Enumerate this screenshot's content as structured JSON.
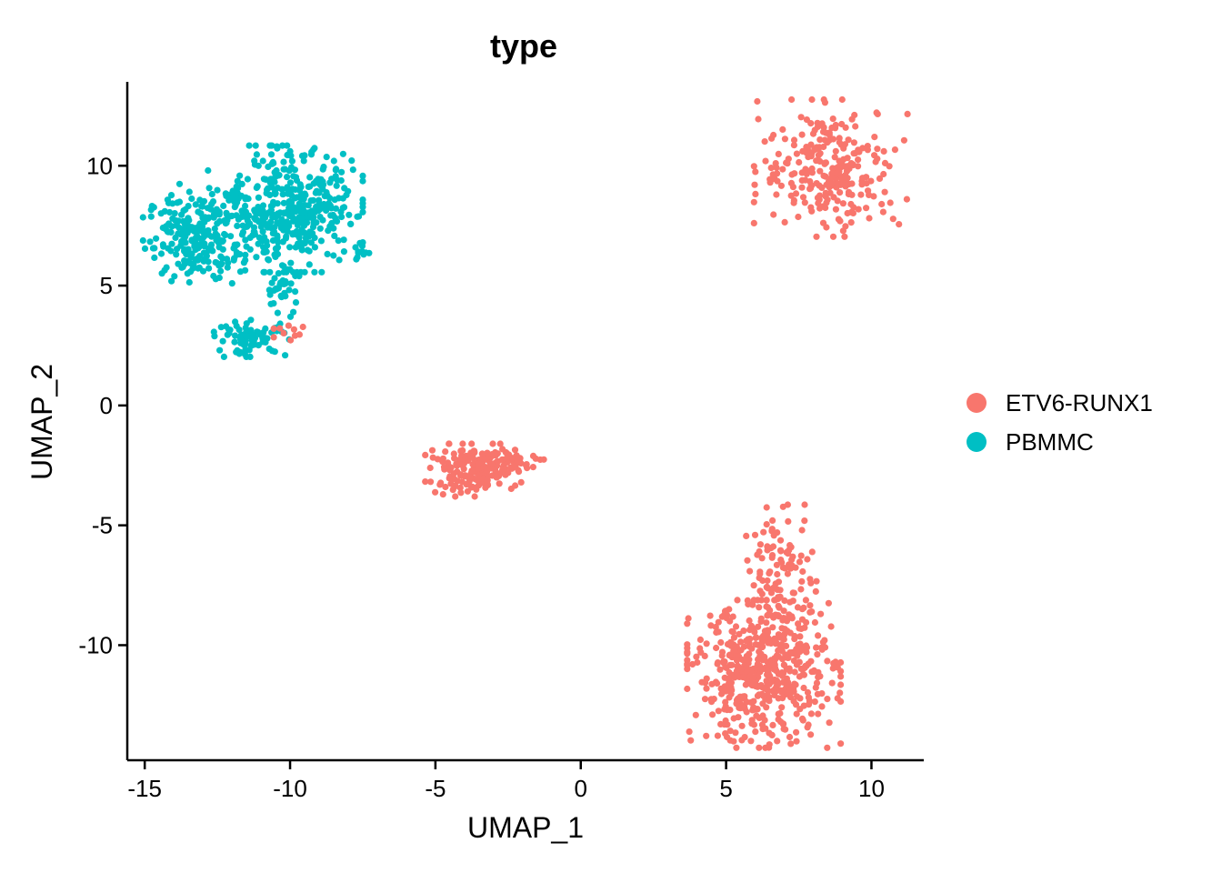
{
  "chart_data": {
    "type": "scatter",
    "title": "type",
    "xlabel": "UMAP_1",
    "ylabel": "UMAP_2",
    "xlim": [
      -15.6,
      11.8
    ],
    "ylim": [
      -14.8,
      13.5
    ],
    "xticks": [
      -15,
      -10,
      -5,
      0,
      5,
      10
    ],
    "xtick_labels": [
      "-15",
      "-10",
      "-5",
      "0",
      "5",
      "10"
    ],
    "yticks": [
      -10,
      -5,
      0,
      5,
      10
    ],
    "ytick_labels": [
      "-10",
      "-5",
      "0",
      "5",
      "10"
    ],
    "grid": false,
    "legend_position": "right",
    "series": [
      {
        "name": "ETV6-RUNX1",
        "color": "#F8766D",
        "clusters": [
          {
            "cx": 8.6,
            "cy": 9.9,
            "sx": 1.2,
            "sy": 1.3,
            "n": 260
          },
          {
            "cx": 6.3,
            "cy": -11.2,
            "sx": 1.2,
            "sy": 1.4,
            "n": 520
          },
          {
            "cx": 6.9,
            "cy": -7.0,
            "sx": 0.55,
            "sy": 1.3,
            "n": 110
          },
          {
            "cx": -3.7,
            "cy": -2.7,
            "sx": 0.75,
            "sy": 0.5,
            "n": 170
          },
          {
            "cx": -2.3,
            "cy": -2.3,
            "sx": 0.55,
            "sy": 0.2,
            "n": 40
          },
          {
            "cx": -9.9,
            "cy": 3.1,
            "sx": 0.3,
            "sy": 0.2,
            "n": 10
          }
        ]
      },
      {
        "name": "PBMMC",
        "color": "#00BFC4",
        "clusters": [
          {
            "cx": -13.3,
            "cy": 7.0,
            "sx": 0.8,
            "sy": 0.9,
            "n": 190
          },
          {
            "cx": -11.6,
            "cy": 7.6,
            "sx": 1.0,
            "sy": 1.0,
            "n": 170
          },
          {
            "cx": -9.7,
            "cy": 8.2,
            "sx": 1.0,
            "sy": 1.2,
            "n": 320
          },
          {
            "cx": -10.3,
            "cy": 4.8,
            "sx": 0.3,
            "sy": 0.5,
            "n": 35
          },
          {
            "cx": -11.3,
            "cy": 2.8,
            "sx": 0.6,
            "sy": 0.35,
            "n": 80
          },
          {
            "cx": -7.6,
            "cy": 6.3,
            "sx": 0.15,
            "sy": 0.2,
            "n": 10
          }
        ]
      }
    ]
  }
}
